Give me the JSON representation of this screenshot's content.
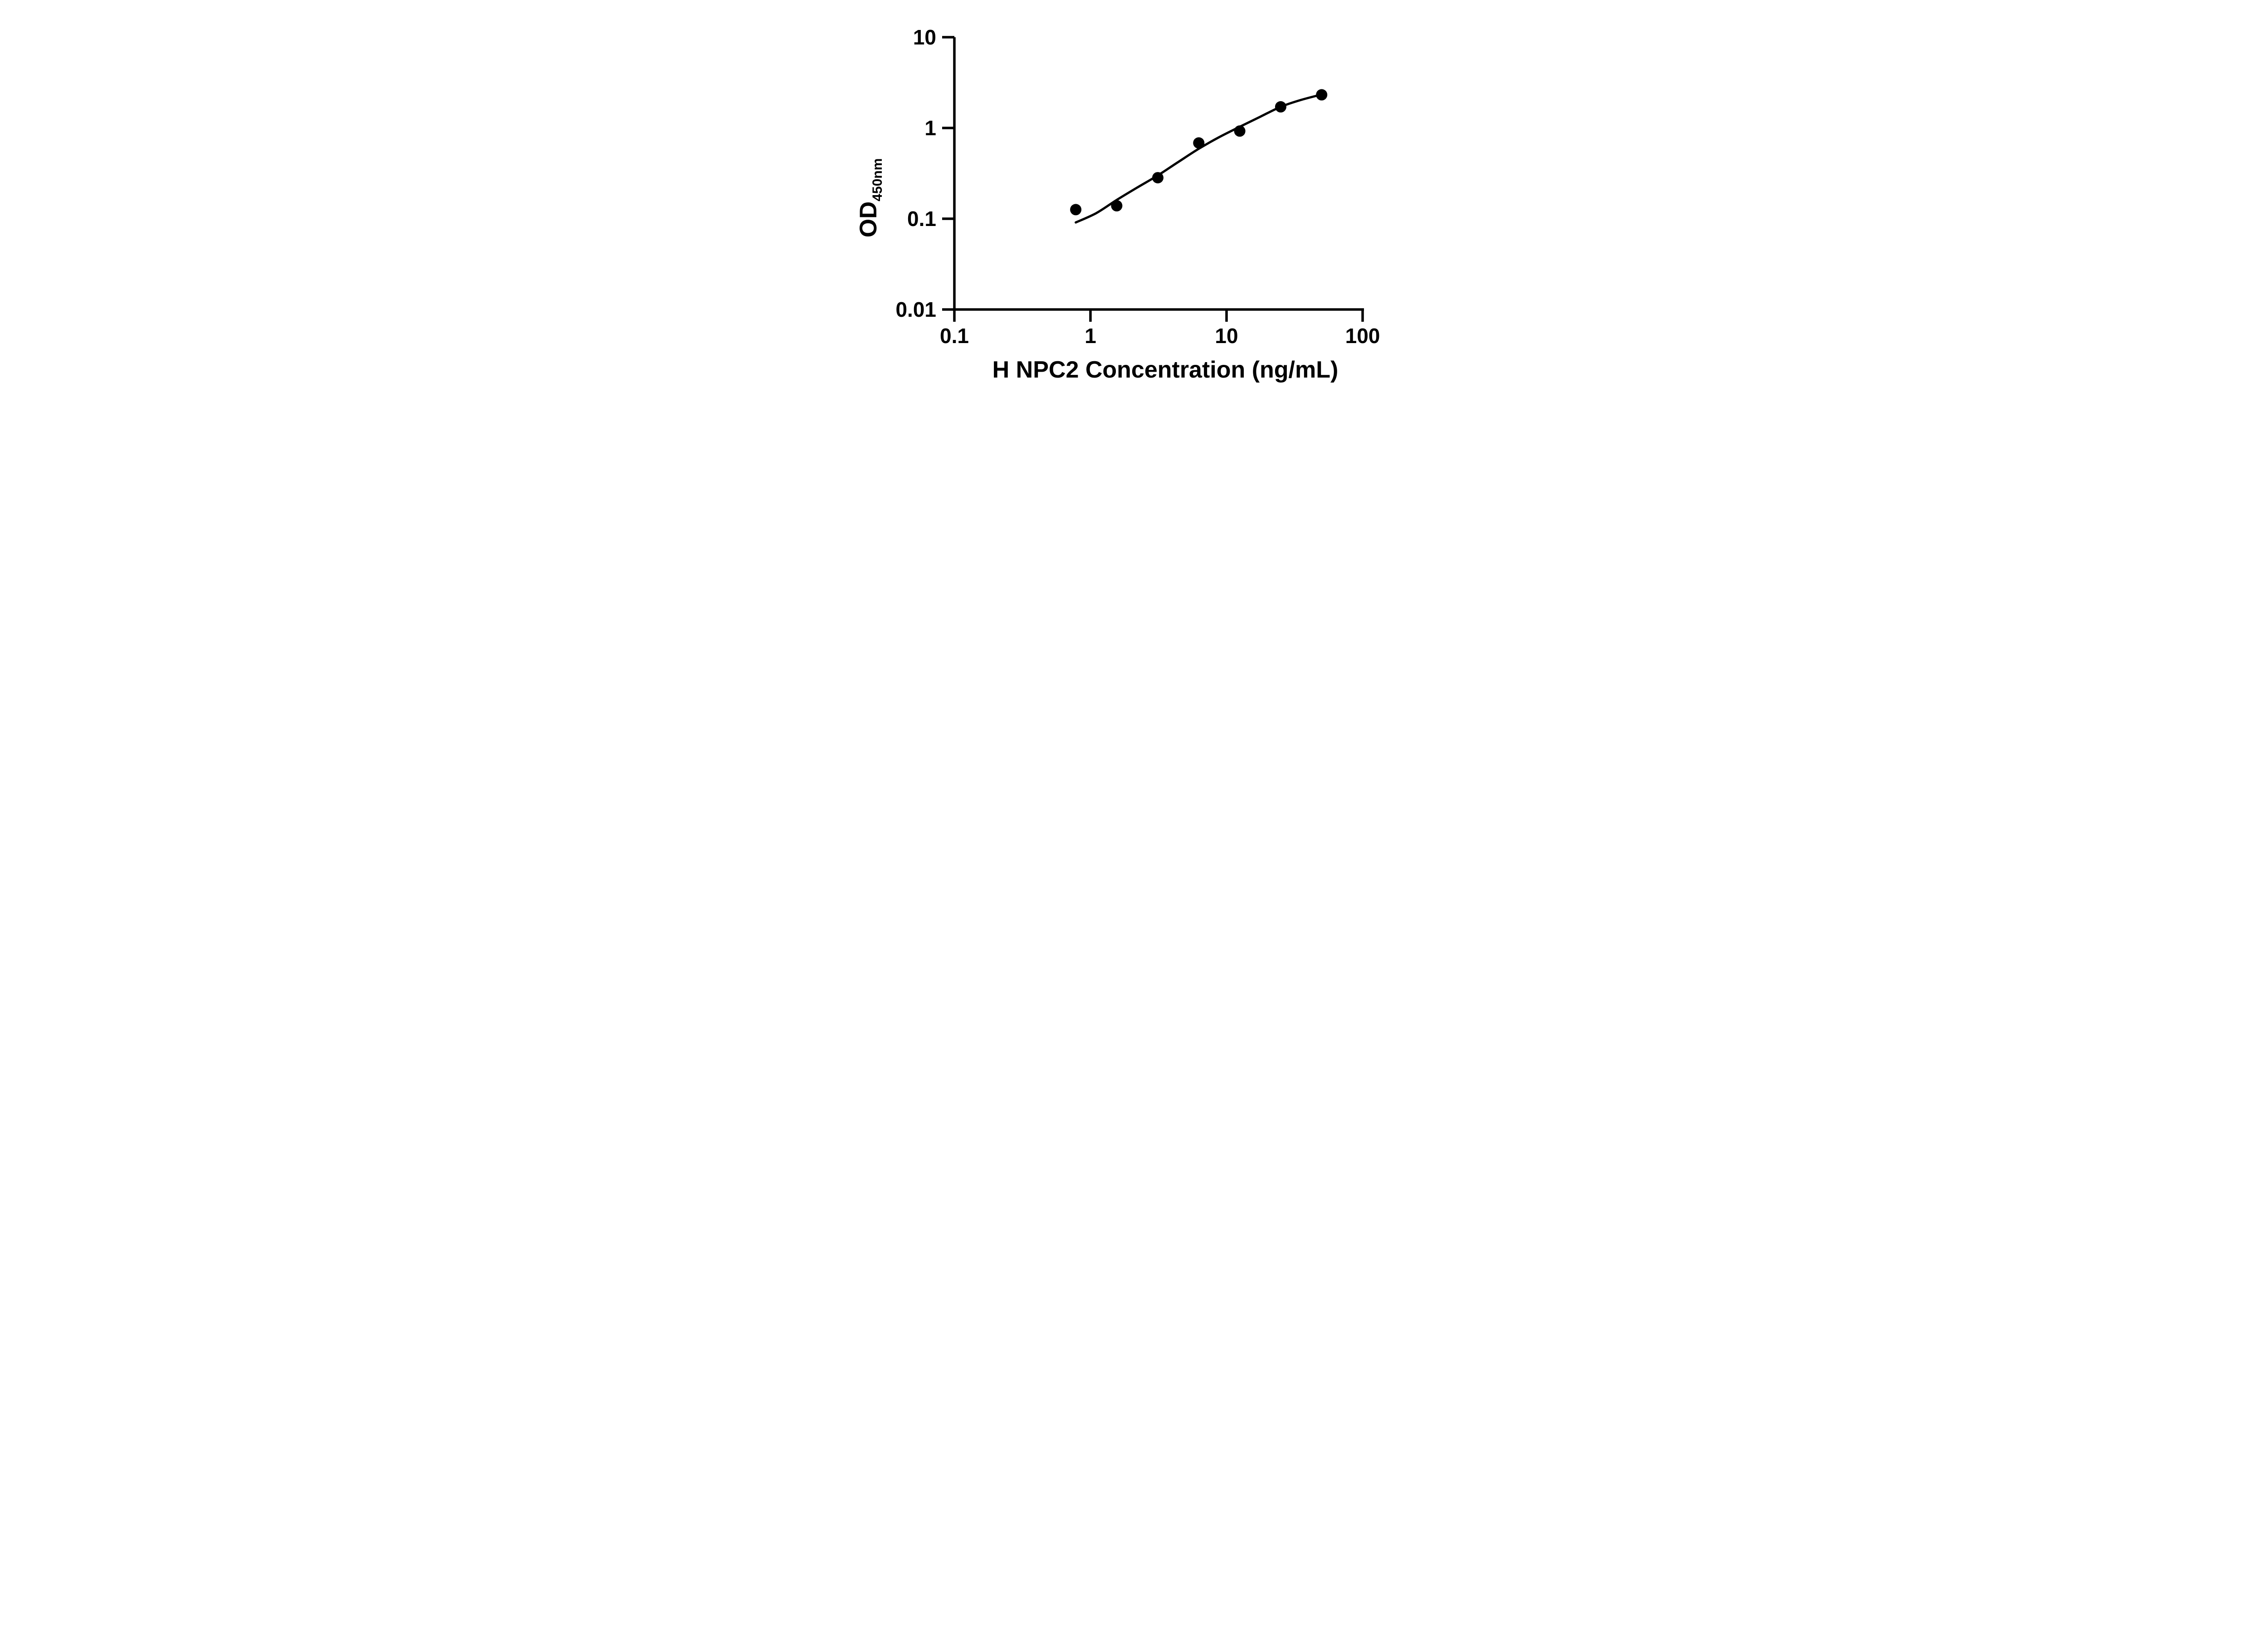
{
  "figure": {
    "background_color": "#ffffff",
    "ink_color": "#000000"
  },
  "chart_data": {
    "type": "scatter",
    "title": "",
    "xlabel": "H NPC2 Concentration (ng/mL)",
    "ylabel_main": "OD",
    "ylabel_sub": "450nm",
    "x_scale": "log",
    "y_scale": "log",
    "xlim": [
      0.1,
      100
    ],
    "ylim": [
      0.01,
      10
    ],
    "grid": false,
    "legend": null,
    "x_ticks": [
      {
        "value": 0.1,
        "label": "0.1"
      },
      {
        "value": 1,
        "label": "1"
      },
      {
        "value": 10,
        "label": "10"
      },
      {
        "value": 100,
        "label": "100"
      }
    ],
    "y_ticks": [
      {
        "value": 10,
        "label": "10"
      },
      {
        "value": 1,
        "label": "1"
      },
      {
        "value": 0.1,
        "label": "0.1"
      },
      {
        "value": 0.01,
        "label": "0.01"
      }
    ],
    "series": [
      {
        "name": "standard-points",
        "type": "scatter",
        "marker": "filled-circle",
        "color": "#000000",
        "x": [
          0.78,
          1.56,
          3.125,
          6.25,
          12.5,
          25,
          50
        ],
        "y": [
          0.126,
          0.139,
          0.283,
          0.684,
          0.925,
          1.71,
          2.32
        ]
      },
      {
        "name": "fitted-curve",
        "type": "line",
        "color": "#000000",
        "x": [
          0.78,
          1.1,
          1.56,
          2.2,
          3.125,
          4.4,
          6.25,
          8.8,
          12.5,
          17.7,
          25,
          35,
          50
        ],
        "y": [
          0.091,
          0.115,
          0.161,
          0.22,
          0.3,
          0.42,
          0.59,
          0.79,
          1.03,
          1.33,
          1.71,
          2.03,
          2.34
        ]
      }
    ]
  }
}
